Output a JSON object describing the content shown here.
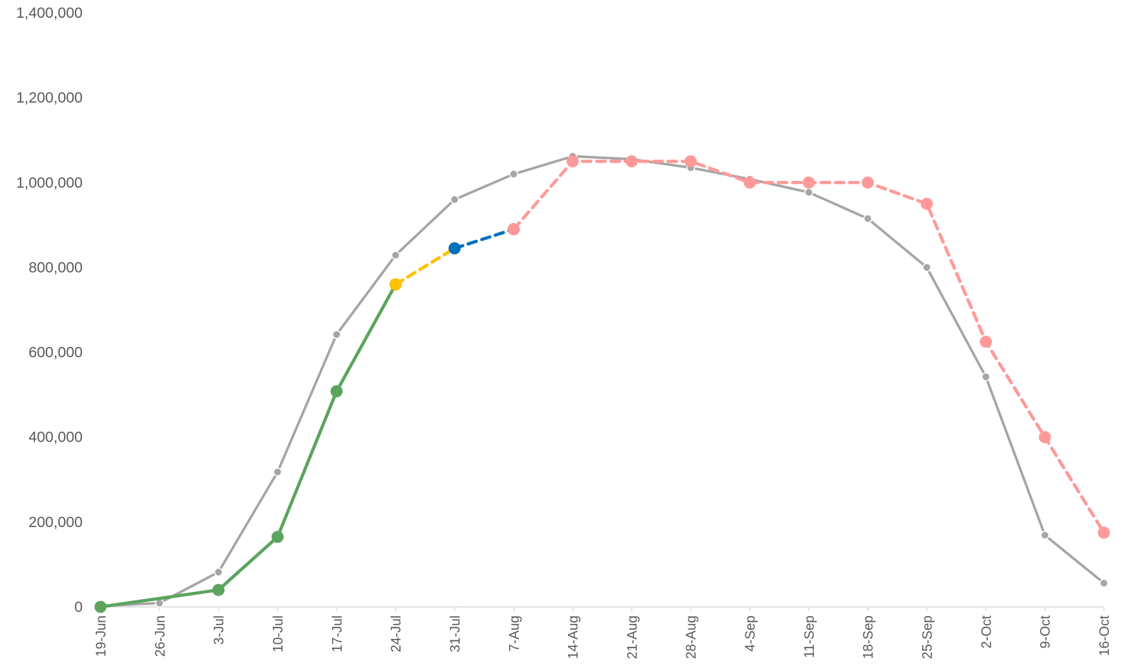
{
  "chart_data": {
    "type": "line",
    "title": "",
    "xlabel": "",
    "ylabel": "",
    "categories": [
      "19-Jun",
      "26-Jun",
      "3-Jul",
      "10-Jul",
      "17-Jul",
      "24-Jul",
      "31-Jul",
      "7-Aug",
      "14-Aug",
      "21-Aug",
      "28-Aug",
      "4-Sep",
      "11-Sep",
      "18-Sep",
      "25-Sep",
      "2-Oct",
      "9-Oct",
      "16-Oct"
    ],
    "ylim": [
      0,
      1400000
    ],
    "yticks": [
      0,
      200000,
      400000,
      600000,
      800000,
      1000000,
      1200000,
      1400000
    ],
    "ytick_labels": [
      "0",
      "200,000",
      "400,000",
      "600,000",
      "800,000",
      "1,000,000",
      "1,200,000",
      "1,400,000"
    ],
    "grid": false,
    "legend": "none",
    "series": [
      {
        "style": "solid-small-markers",
        "color": "#A5A5A5",
        "values": [
          2000,
          9000,
          82000,
          318000,
          642000,
          829000,
          960000,
          1020000,
          1062000,
          1055000,
          1035000,
          1008000,
          977000,
          915000,
          800000,
          542000,
          169000,
          56000
        ]
      },
      {
        "style": "solid",
        "color": "#5BA45E",
        "values": [
          0,
          null,
          40000,
          165000,
          508000,
          760000,
          null,
          null,
          null,
          null,
          null,
          null,
          null,
          null,
          null,
          null,
          null,
          null
        ]
      },
      {
        "style": "dashed",
        "color": "#FFC000",
        "values": [
          null,
          null,
          null,
          null,
          null,
          760000,
          845000,
          null,
          null,
          null,
          null,
          null,
          null,
          null,
          null,
          null,
          null,
          null
        ]
      },
      {
        "style": "dashed",
        "color": "#0070C0",
        "values": [
          null,
          null,
          null,
          null,
          null,
          null,
          845000,
          890000,
          null,
          null,
          null,
          null,
          null,
          null,
          null,
          null,
          null,
          null
        ]
      },
      {
        "style": "dashed",
        "color": "#FF9999",
        "values": [
          null,
          null,
          null,
          null,
          null,
          null,
          null,
          890000,
          1050000,
          1050000,
          1050000,
          1000000,
          1000000,
          1000000,
          950000,
          625000,
          400000,
          175000
        ]
      }
    ]
  }
}
